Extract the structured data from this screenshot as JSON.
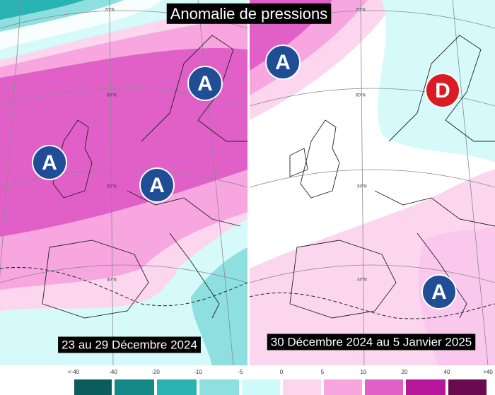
{
  "title": "Anomalie de pressions",
  "panels": [
    {
      "caption": "23 au 29 Décembre 2024",
      "latitude_labels": [
        "70°N",
        "60°N",
        "50°N",
        "40°N"
      ],
      "markers": [
        "A",
        "A",
        "A"
      ]
    },
    {
      "caption": "30 Décembre 2024 au 5 Janvier 2025",
      "latitude_labels": [
        "70°N",
        "60°N",
        "50°N",
        "40°N"
      ],
      "markers": [
        "A",
        "D",
        "A"
      ]
    }
  ],
  "colorbar": {
    "labels": [
      "<-40",
      "-40",
      "-20",
      "-10",
      "-5",
      "0",
      "5",
      "10",
      "20",
      "40",
      ">40"
    ],
    "colors": [
      "#0b5c5c",
      "#158888",
      "#2ab3b3",
      "#8ee0e0",
      "#cffafa",
      "#fcd6ee",
      "#f7a6e0",
      "#e060c8",
      "#b8169a",
      "#6a0a50"
    ]
  },
  "marker_colors": {
    "A": "#1f4e96",
    "D": "#d91c24"
  }
}
